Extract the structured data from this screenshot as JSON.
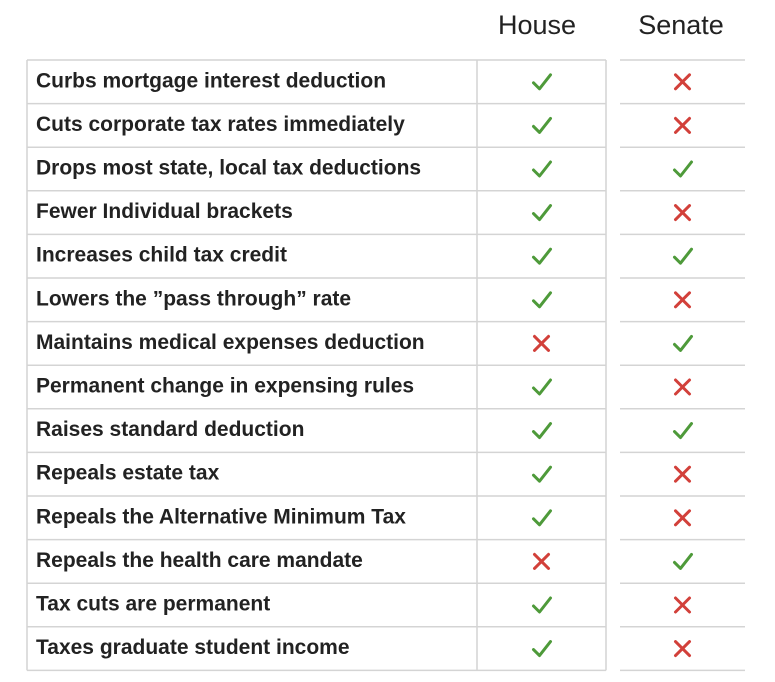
{
  "table": {
    "columns": [
      "House",
      "Senate"
    ],
    "rows": [
      {
        "label": "Curbs mortgage interest deduction",
        "house": true,
        "senate": false
      },
      {
        "label": "Cuts corporate tax rates immediately",
        "house": true,
        "senate": false
      },
      {
        "label": "Drops most state, local tax deductions",
        "house": true,
        "senate": true
      },
      {
        "label": "Fewer Individual brackets",
        "house": true,
        "senate": false
      },
      {
        "label": "Increases child tax credit",
        "house": true,
        "senate": true
      },
      {
        "label": "Lowers the ”pass through” rate",
        "house": true,
        "senate": false
      },
      {
        "label": "Maintains medical expenses deduction",
        "house": false,
        "senate": true
      },
      {
        "label": "Permanent change in expensing rules",
        "house": true,
        "senate": false
      },
      {
        "label": "Raises standard deduction",
        "house": true,
        "senate": true
      },
      {
        "label": "Repeals estate tax",
        "house": true,
        "senate": false
      },
      {
        "label": "Repeals the Alternative Minimum Tax",
        "house": true,
        "senate": false
      },
      {
        "label": "Repeals the health care mandate",
        "house": false,
        "senate": true
      },
      {
        "label": "Tax cuts are permanent",
        "house": true,
        "senate": false
      },
      {
        "label": "Taxes graduate student income",
        "house": true,
        "senate": false
      }
    ]
  }
}
